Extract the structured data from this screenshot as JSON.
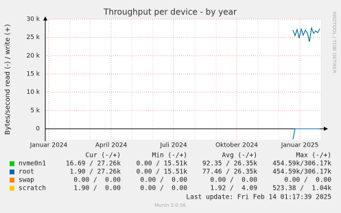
{
  "chart_data": {
    "type": "line",
    "title": "Throughput per device - by year",
    "y_label": "Bytes/second read (-) / write (+)",
    "side_text": "RRDTOOL / TOBI OETIKER",
    "xlim": [
      "2023-12-27",
      "2025-02-01"
    ],
    "xticks": [
      {
        "value": "2024-01-01",
        "label": "Januar 2024"
      },
      {
        "value": "2024-04-01",
        "label": "April 2024"
      },
      {
        "value": "2024-07-01",
        "label": "Juli 2024"
      },
      {
        "value": "2024-10-01",
        "label": "Oktober 2024"
      },
      {
        "value": "2025-01-01",
        "label": "Januar 2025"
      }
    ],
    "ylim": [
      -3000,
      30000
    ],
    "yticks": [
      {
        "value": 0,
        "label": "0"
      },
      {
        "value": 5000,
        "label": "5 k"
      },
      {
        "value": 10000,
        "label": "10 k"
      },
      {
        "value": 15000,
        "label": "15 k"
      },
      {
        "value": 20000,
        "label": "20 k"
      },
      {
        "value": 25000,
        "label": "25 k"
      },
      {
        "value": 30000,
        "label": "30 k"
      }
    ],
    "grid": true,
    "x": [
      "2024-12-22",
      "2024-12-25",
      "2024-12-28",
      "2024-12-31",
      "2025-01-03",
      "2025-01-06",
      "2025-01-09",
      "2025-01-12",
      "2025-01-15",
      "2025-01-18",
      "2025-01-21",
      "2025-01-24",
      "2025-01-27",
      "2025-01-30"
    ],
    "columns": [
      "Cur (-/+)",
      "Min (-/+)",
      "Avg (-/+)",
      "Max (-/+)"
    ],
    "series": [
      {
        "name": "nvme0n1",
        "color": "#00cc00",
        "stats": [
          "16.69 / 27.26k",
          "0.00 / 15.51k",
          "92.35 / 26.35k",
          "454.59k/306.17k"
        ],
        "values": [
          27000,
          25500,
          27200,
          24800,
          27300,
          25600,
          27000,
          26200,
          23800,
          27600,
          26100,
          26800,
          26300,
          27400
        ],
        "read": [
          -2900,
          0,
          0,
          0,
          0,
          0,
          0,
          0,
          0,
          0,
          0,
          0,
          0,
          0
        ]
      },
      {
        "name": "root",
        "color": "#0066b3",
        "stats": [
          "1.90 / 27.26k",
          "0.00 / 15.51k",
          "77.46 / 26.35k",
          "454.59k/306.17k"
        ],
        "values": [
          27000,
          25500,
          27200,
          24800,
          27300,
          25600,
          27000,
          26200,
          23800,
          27600,
          26100,
          26800,
          26300,
          27400
        ],
        "read": [
          -2900,
          0,
          0,
          0,
          0,
          0,
          0,
          0,
          0,
          0,
          0,
          0,
          0,
          0
        ]
      },
      {
        "name": "swap",
        "color": "#ff8000",
        "stats": [
          "0.00 /  0.00",
          "0.00 /  0.00",
          "0.00 /  0.00",
          "0.00 /  0.00"
        ]
      },
      {
        "name": "scratch",
        "color": "#ffcc00",
        "stats": [
          "1.90 /  0.00",
          "0.00 /  0.00",
          "1.92 /  4.09",
          "523.38 /  1.04k"
        ]
      }
    ],
    "last_update": "Last update: Fri Feb 14 01:17:39 2025",
    "footer": "Munin 2.0.56"
  }
}
